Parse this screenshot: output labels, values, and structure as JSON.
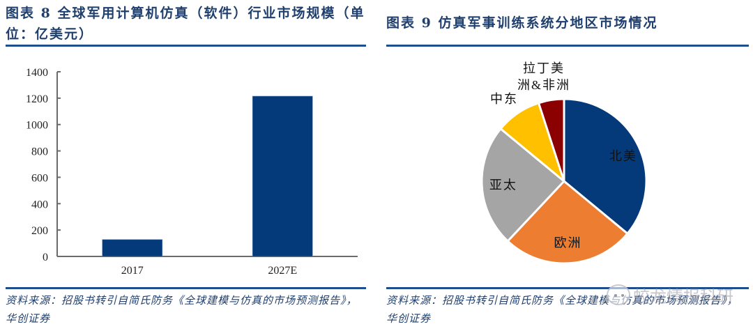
{
  "left": {
    "title": "图表 8   全球军用计算机仿真（软件）行业市场规模（单位：亿美元）",
    "source": "资料来源：招股书转引自简氏防务《全球建模与仿真的市场预测报告》，华创证券"
  },
  "right": {
    "title": "图表 9   仿真军事训练系统分地区市场情况",
    "source": "资料来源：招股书转引自简氏防务《全球建模与仿真的市场预测报告》，华创证券",
    "watermark": "蛟龙情报科研"
  },
  "colors": {
    "title": "#1f3f6e",
    "rule": "#1f4e8c",
    "bar": "#043a7a",
    "axis": "#6b6b6b"
  },
  "chart_data": [
    {
      "type": "bar",
      "title": "全球军用计算机仿真（软件）行业市场规模（单位：亿美元）",
      "categories": [
        "2017",
        "2027E"
      ],
      "values": [
        128,
        1215
      ],
      "xlabel": "",
      "ylabel": "亿美元",
      "ylim": [
        0,
        1400
      ],
      "yticks": [
        0,
        200,
        400,
        600,
        800,
        1000,
        1200,
        1400
      ],
      "grid": false,
      "legend": null
    },
    {
      "type": "pie",
      "title": "仿真军事训练系统分地区市场情况",
      "categories": [
        "北美",
        "欧洲",
        "亚太",
        "中东",
        "拉丁美洲&非洲"
      ],
      "values": [
        36,
        26,
        24,
        9,
        5
      ],
      "colors": [
        "#043a7a",
        "#ed7d31",
        "#a5a5a5",
        "#ffc000",
        "#8b0000"
      ],
      "start_angle": 0,
      "direction": "clockwise",
      "labels_inside": [
        "北美",
        "欧洲",
        "亚太"
      ],
      "labels_outside": [
        "中东",
        "拉丁美洲&非洲"
      ],
      "legend": null
    }
  ]
}
